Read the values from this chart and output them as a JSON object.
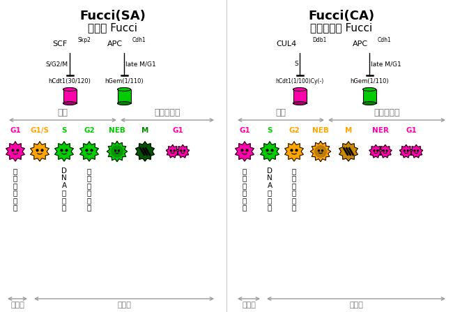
{
  "title_left": "Fucci(SA)",
  "subtitle_left": "従来の Fucci",
  "title_right": "Fucci(CA)",
  "subtitle_right": "新規開発の Fucci",
  "left_enzyme1": "SCF",
  "left_enzyme1_sup": "Skp2",
  "left_enzyme1_phase": "S/G2/M",
  "left_protein1": "hCdt1(30/120)",
  "left_enzyme2": "APC",
  "left_enzyme2_sup": "Cdh1",
  "left_enzyme2_phase": "late M/G1",
  "left_protein2": "hGem(1/110)",
  "right_enzyme1": "CUL4",
  "right_enzyme1_sup": "Ddb1",
  "right_enzyme1_phase": "S",
  "right_protein1": "hCdt1(1/100)Cy(-)",
  "right_enzyme2": "APC",
  "right_enzyme2_sup": "Cdh1",
  "right_enzyme2_phase": "late M/G1",
  "right_protein2": "hGem(1/110)",
  "interphase_label": "間期",
  "mitotic_label": "有糸分裂期",
  "quiescent_label": "休止期",
  "proliferating_label": "増殖期",
  "annot1": "複製前休止期",
  "annot2": "DNA複製期",
  "annot3": "分裂前準備期",
  "left_stages": [
    "G1",
    "G1/S",
    "S",
    "G2",
    "NEB",
    "M",
    "G1"
  ],
  "left_stage_colors": [
    "#FF00AA",
    "#FFA500",
    "#00CC00",
    "#00CC00",
    "#00CC00",
    "#008800",
    "#FF00AA"
  ],
  "right_stages": [
    "G1",
    "S",
    "G2",
    "NEB",
    "M",
    "NER",
    "G1"
  ],
  "right_stage_colors": [
    "#FF00AA",
    "#00CC00",
    "#FFA500",
    "#FFA500",
    "#FFA500",
    "#FF00AA",
    "#FF00AA"
  ],
  "pink": "#FF00AA",
  "green": "#00CC00",
  "orange": "#FFA500",
  "dark_green": "#005500",
  "black": "#000000",
  "gray": "#999999",
  "bg": "#FFFFFF"
}
